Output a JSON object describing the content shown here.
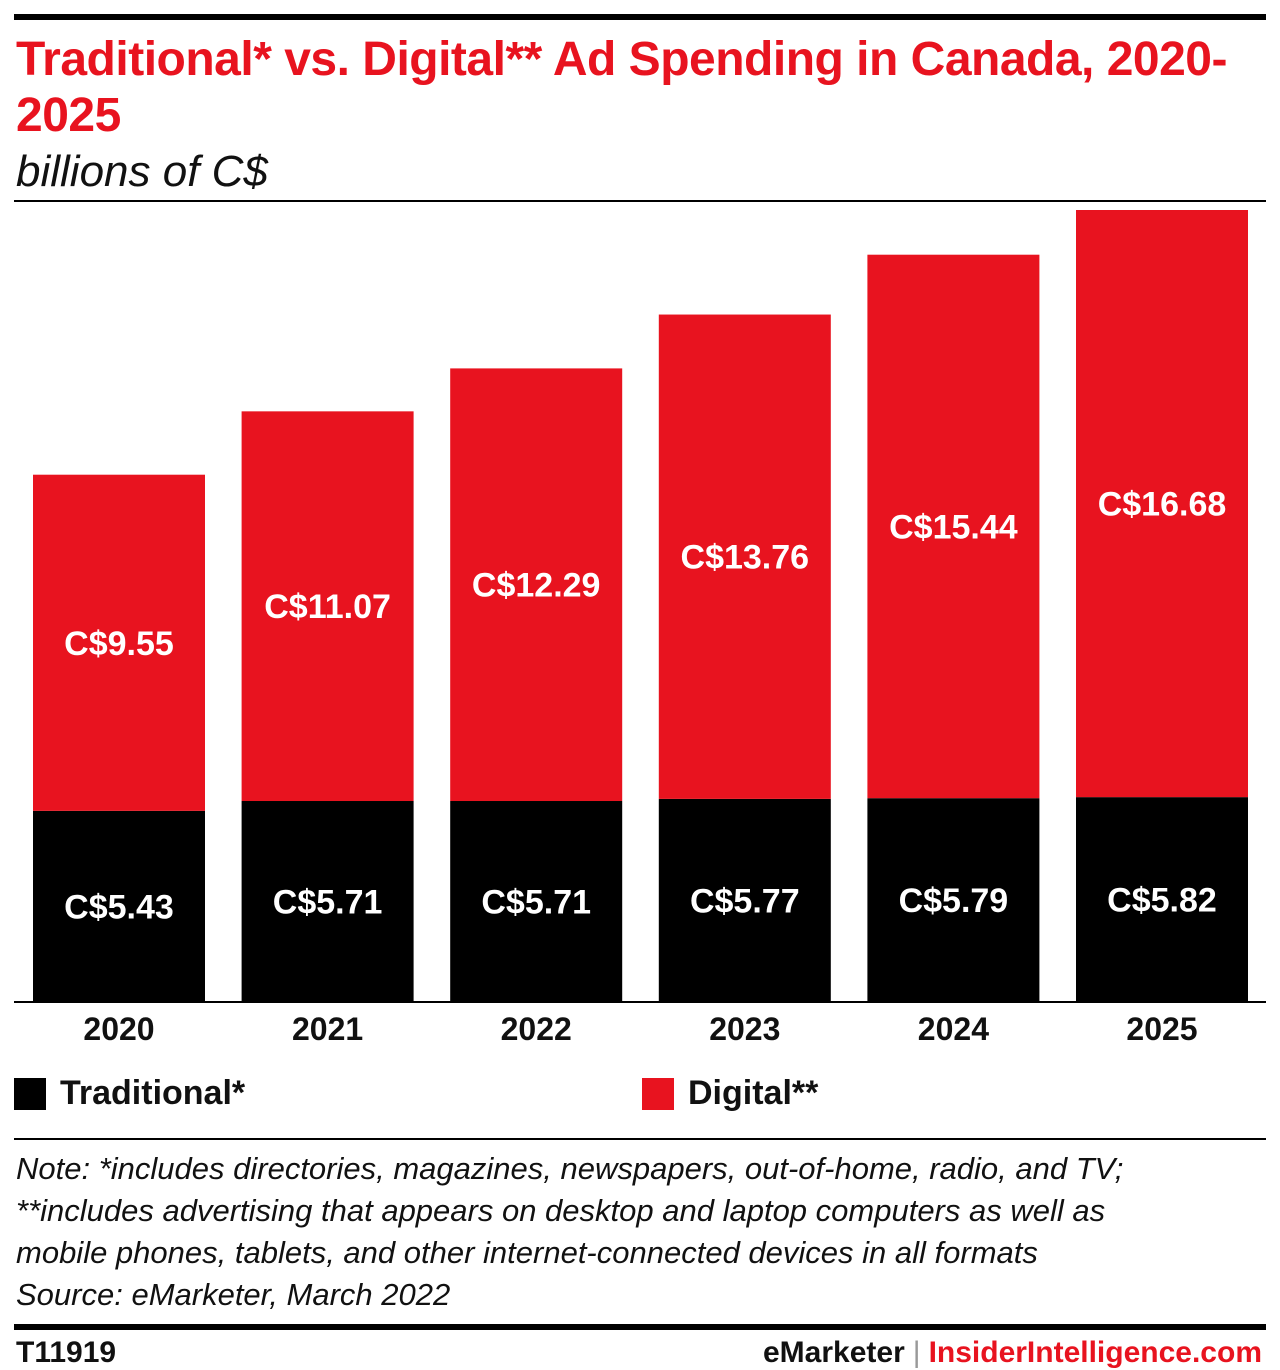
{
  "header": {
    "title": "Traditional* vs. Digital** Ad Spending in Canada, 2020-2025",
    "subtitle": "billions of C$"
  },
  "chart_data": {
    "type": "bar",
    "stacked": true,
    "categories": [
      "2020",
      "2021",
      "2022",
      "2023",
      "2024",
      "2025"
    ],
    "series": [
      {
        "name": "Traditional*",
        "values": [
          5.43,
          5.71,
          5.71,
          5.77,
          5.79,
          5.82
        ],
        "labels": [
          "C$5.43",
          "C$5.71",
          "C$5.71",
          "C$5.77",
          "C$5.79",
          "C$5.82"
        ],
        "color": "#000000"
      },
      {
        "name": "Digital**",
        "values": [
          9.55,
          11.07,
          12.29,
          13.76,
          15.44,
          16.68
        ],
        "labels": [
          "C$9.55",
          "C$11.07",
          "C$12.29",
          "C$13.76",
          "C$15.44",
          "C$16.68"
        ],
        "color": "#e8131f"
      }
    ],
    "ylim": [
      0,
      22.5
    ],
    "grid": false,
    "legend_position": "bottom"
  },
  "notes": {
    "line1": "Note: *includes directories, magazines, newspapers, out-of-home, radio, and TV;",
    "line2": "**includes advertising that appears on desktop and laptop computers as well as",
    "line3": "mobile phones, tablets, and other internet-connected devices in all formats",
    "source": "Source: eMarketer, March 2022"
  },
  "footer": {
    "chart_id": "T11919",
    "brand1": "eMarketer",
    "separator": "|",
    "brand2": "InsiderIntelligence.com"
  }
}
